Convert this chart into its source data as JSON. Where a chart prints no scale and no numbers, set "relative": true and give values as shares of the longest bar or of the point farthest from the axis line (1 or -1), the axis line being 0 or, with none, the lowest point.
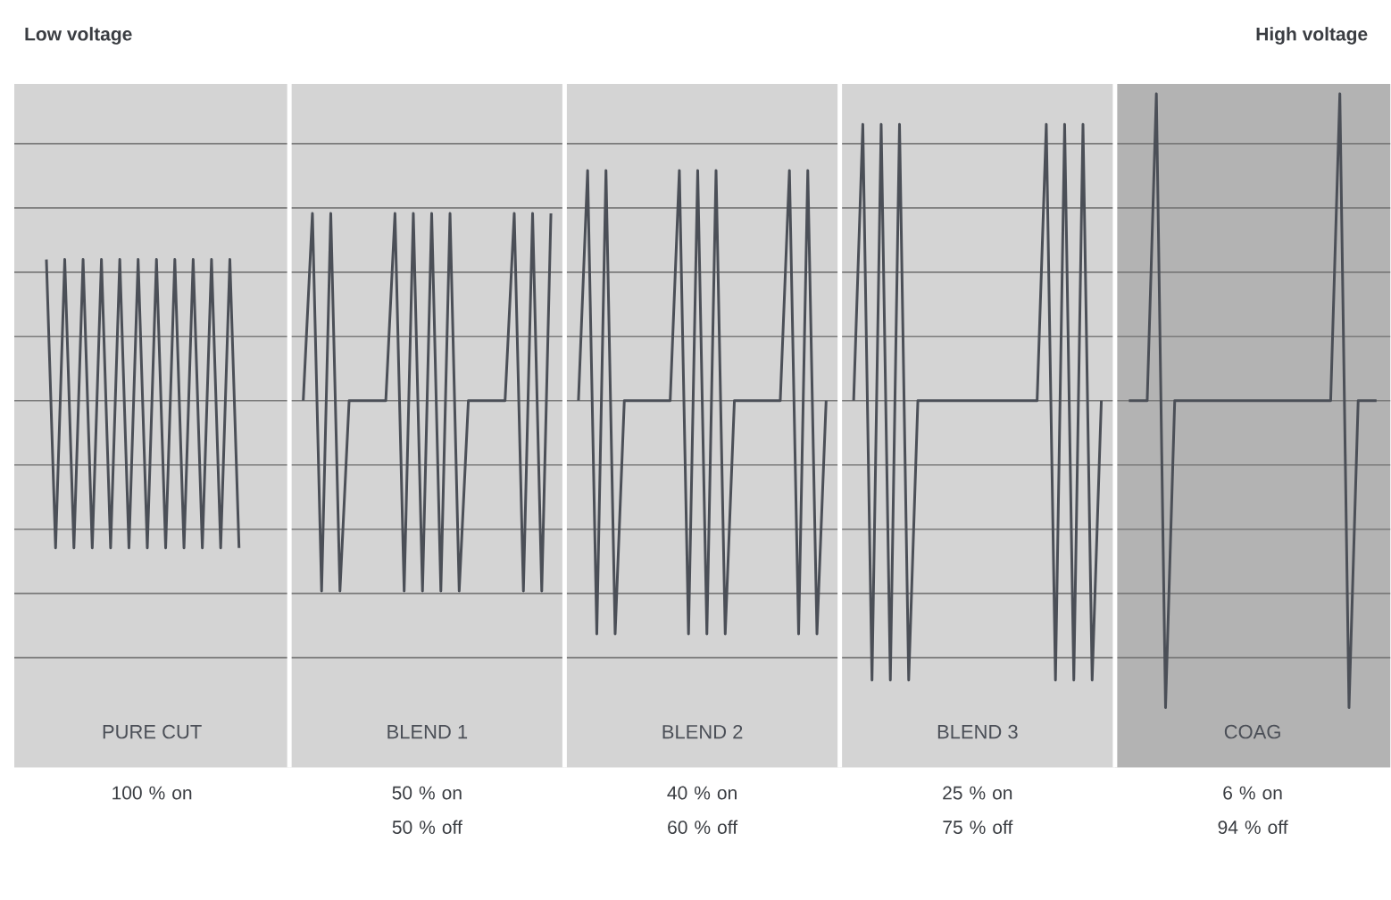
{
  "chart_data": {
    "type": "line",
    "relative": true,
    "grid": true,
    "annotations": [
      "Low voltage",
      "High voltage",
      "PURE CUT",
      "100 % on",
      "BLEND 1",
      "50 % on",
      "50 % off",
      "BLEND 2",
      "40 % on",
      "60 % off",
      "BLEND 3",
      "25 % on",
      "75 % off",
      "COAG",
      "6 % on",
      "94 % off"
    ],
    "categories": [
      null,
      null,
      null,
      null,
      null,
      null,
      null,
      null,
      null,
      null,
      null,
      null,
      null,
      null,
      null,
      null,
      null,
      null,
      null,
      null,
      null,
      null,
      null,
      null,
      null,
      null,
      null,
      null,
      null,
      null,
      null,
      null,
      null,
      null,
      null,
      null,
      null,
      null,
      null,
      null,
      null,
      null,
      null,
      null,
      null,
      null,
      null,
      null,
      null,
      null,
      null,
      null,
      null,
      null,
      null,
      null,
      null,
      null,
      null,
      null,
      null,
      null,
      null,
      null,
      null,
      null,
      null,
      null,
      null,
      null,
      null,
      null,
      null,
      null,
      null,
      null,
      null,
      null,
      null,
      null,
      null,
      null,
      null,
      null,
      null,
      null,
      null,
      null,
      null,
      null,
      null,
      null,
      null,
      null,
      null,
      null,
      null,
      null,
      null,
      null,
      null,
      null,
      null,
      null,
      null,
      null,
      null,
      null,
      null,
      null,
      null,
      null,
      null,
      null,
      null,
      null,
      null,
      null,
      null,
      null,
      null,
      null,
      null,
      null,
      null,
      null,
      null,
      null,
      null,
      null,
      null,
      null,
      null,
      null,
      null,
      null,
      null,
      null,
      null,
      null,
      null,
      null,
      null,
      null,
      null,
      null,
      null,
      null,
      null,
      null
    ],
    "series": [
      {
        "color": "#4b4f57",
        "values": [
          null,
          null,
          null,
          0.46,
          -0.48,
          0.46,
          -0.48,
          0.46,
          -0.48,
          0.46,
          -0.48,
          0.46,
          -0.48,
          0.46,
          -0.48,
          0.46,
          -0.48,
          0.46,
          -0.48,
          0.46,
          -0.48,
          0.46,
          -0.48,
          0.46,
          -0.48,
          null,
          null,
          null,
          null,
          null,
          null,
          null,
          null,
          null,
          null,
          null,
          null,
          null,
          null,
          null,
          null,
          null,
          null,
          null,
          null,
          null,
          null,
          null,
          null,
          null,
          null,
          null,
          null,
          null,
          null,
          null,
          null,
          null,
          null,
          null,
          null,
          null,
          null,
          null,
          null,
          null,
          null,
          null,
          null,
          null,
          null,
          null,
          null,
          null,
          null,
          null,
          null,
          null,
          null,
          null,
          null,
          null,
          null,
          null,
          null,
          null,
          null,
          null,
          null,
          null,
          null,
          null,
          null,
          null,
          null,
          null,
          null,
          null,
          null,
          null,
          null,
          null,
          null,
          null,
          null,
          null,
          null,
          null,
          null,
          null,
          null,
          null,
          null,
          null,
          null,
          null,
          null,
          null,
          null,
          null,
          null,
          null,
          null,
          null,
          null,
          null,
          null,
          null,
          null,
          null,
          null,
          null,
          null,
          null,
          null,
          null,
          null,
          null,
          null,
          null,
          null,
          null,
          null,
          null,
          null,
          null,
          null,
          null,
          null,
          null
        ]
      },
      {
        "color": "#4b4f57",
        "values": [
          null,
          null,
          null,
          null,
          null,
          null,
          null,
          null,
          null,
          null,
          null,
          null,
          null,
          null,
          null,
          null,
          null,
          null,
          null,
          null,
          null,
          null,
          null,
          null,
          null,
          null,
          null,
          null,
          null,
          null,
          null,
          0,
          0.61,
          -0.62,
          0.61,
          -0.62,
          0,
          0,
          0,
          0,
          0,
          0.61,
          -0.62,
          0.61,
          -0.62,
          0.61,
          -0.62,
          0.61,
          -0.62,
          0,
          0,
          0,
          0,
          0,
          0.61,
          -0.62,
          0.61,
          -0.62,
          0.61,
          null,
          null,
          null,
          null,
          null,
          null,
          null,
          null,
          null,
          null,
          null,
          null,
          null,
          null,
          null,
          null,
          null,
          null,
          null,
          null,
          null,
          null,
          null,
          null,
          null,
          null,
          null,
          null,
          null,
          null,
          null,
          null,
          null,
          null,
          null,
          null,
          null,
          null,
          null,
          null,
          null,
          null,
          null,
          null,
          null,
          null,
          null,
          null,
          null,
          null,
          null,
          null,
          null,
          null,
          null,
          null,
          null,
          null,
          null,
          null,
          null,
          null,
          null,
          null,
          null,
          null,
          null,
          null,
          null,
          null,
          null,
          null,
          null,
          null,
          null,
          null,
          null,
          null,
          null,
          null,
          null,
          null,
          null,
          null,
          null,
          null,
          null,
          null,
          null,
          null,
          null
        ]
      },
      {
        "color": "#4b4f57",
        "values": [
          null,
          null,
          null,
          null,
          null,
          null,
          null,
          null,
          null,
          null,
          null,
          null,
          null,
          null,
          null,
          null,
          null,
          null,
          null,
          null,
          null,
          null,
          null,
          null,
          null,
          null,
          null,
          null,
          null,
          null,
          null,
          null,
          null,
          null,
          null,
          null,
          null,
          null,
          null,
          null,
          null,
          null,
          null,
          null,
          null,
          null,
          null,
          null,
          null,
          null,
          null,
          null,
          null,
          null,
          null,
          null,
          null,
          null,
          null,
          null,
          null,
          0,
          0.75,
          -0.76,
          0.75,
          -0.76,
          0,
          0,
          0,
          0,
          0,
          0,
          0.75,
          -0.76,
          0.75,
          -0.76,
          0.75,
          -0.76,
          0,
          0,
          0,
          0,
          0,
          0,
          0.75,
          -0.76,
          0.75,
          -0.76,
          0,
          null,
          null,
          null,
          null,
          null,
          null,
          null,
          null,
          null,
          null,
          null,
          null,
          null,
          null,
          null,
          null,
          null,
          null,
          null,
          null,
          null,
          null,
          null,
          null,
          null,
          null,
          null,
          null,
          null,
          null,
          null,
          null,
          null,
          null,
          null,
          null,
          null,
          null,
          null,
          null,
          null,
          null,
          null,
          null,
          null,
          null,
          null,
          null,
          null,
          null,
          null,
          null,
          null,
          null,
          null,
          null,
          null,
          null,
          null,
          null,
          null
        ]
      },
      {
        "color": "#4b4f57",
        "values": [
          null,
          null,
          null,
          null,
          null,
          null,
          null,
          null,
          null,
          null,
          null,
          null,
          null,
          null,
          null,
          null,
          null,
          null,
          null,
          null,
          null,
          null,
          null,
          null,
          null,
          null,
          null,
          null,
          null,
          null,
          null,
          null,
          null,
          null,
          null,
          null,
          null,
          null,
          null,
          null,
          null,
          null,
          null,
          null,
          null,
          null,
          null,
          null,
          null,
          null,
          null,
          null,
          null,
          null,
          null,
          null,
          null,
          null,
          null,
          null,
          null,
          null,
          null,
          null,
          null,
          null,
          null,
          null,
          null,
          null,
          null,
          null,
          null,
          null,
          null,
          null,
          null,
          null,
          null,
          null,
          null,
          null,
          null,
          null,
          null,
          null,
          null,
          null,
          null,
          null,
          null,
          0,
          0.9,
          -0.91,
          0.9,
          -0.91,
          0.9,
          -0.91,
          0,
          0,
          0,
          0,
          0,
          0,
          0,
          0,
          0,
          0,
          0,
          0,
          0,
          0,
          0.9,
          -0.91,
          0.9,
          -0.91,
          0.9,
          -0.91,
          0,
          null,
          null,
          null,
          null,
          null,
          null,
          null,
          null,
          null,
          null,
          null,
          null,
          null,
          null,
          null,
          null,
          null,
          null,
          null,
          null,
          null,
          null,
          null,
          null,
          null,
          null,
          null,
          null,
          null,
          null,
          null
        ]
      },
      {
        "color": "#4b4f57",
        "values": [
          null,
          null,
          null,
          null,
          null,
          null,
          null,
          null,
          null,
          null,
          null,
          null,
          null,
          null,
          null,
          null,
          null,
          null,
          null,
          null,
          null,
          null,
          null,
          null,
          null,
          null,
          null,
          null,
          null,
          null,
          null,
          null,
          null,
          null,
          null,
          null,
          null,
          null,
          null,
          null,
          null,
          null,
          null,
          null,
          null,
          null,
          null,
          null,
          null,
          null,
          null,
          null,
          null,
          null,
          null,
          null,
          null,
          null,
          null,
          null,
          null,
          null,
          null,
          null,
          null,
          null,
          null,
          null,
          null,
          null,
          null,
          null,
          null,
          null,
          null,
          null,
          null,
          null,
          null,
          null,
          null,
          null,
          null,
          null,
          null,
          null,
          null,
          null,
          null,
          null,
          null,
          null,
          null,
          null,
          null,
          null,
          null,
          null,
          null,
          null,
          null,
          null,
          null,
          null,
          null,
          null,
          null,
          null,
          null,
          null,
          null,
          null,
          null,
          null,
          null,
          null,
          null,
          null,
          null,
          null,
          null,
          0,
          0,
          0,
          1,
          -1,
          0,
          0,
          0,
          0,
          0,
          0,
          0,
          0,
          0,
          0,
          0,
          0,
          0,
          0,
          0,
          0,
          0,
          0,
          1,
          -1,
          0,
          0,
          0,
          null
        ]
      }
    ]
  }
}
